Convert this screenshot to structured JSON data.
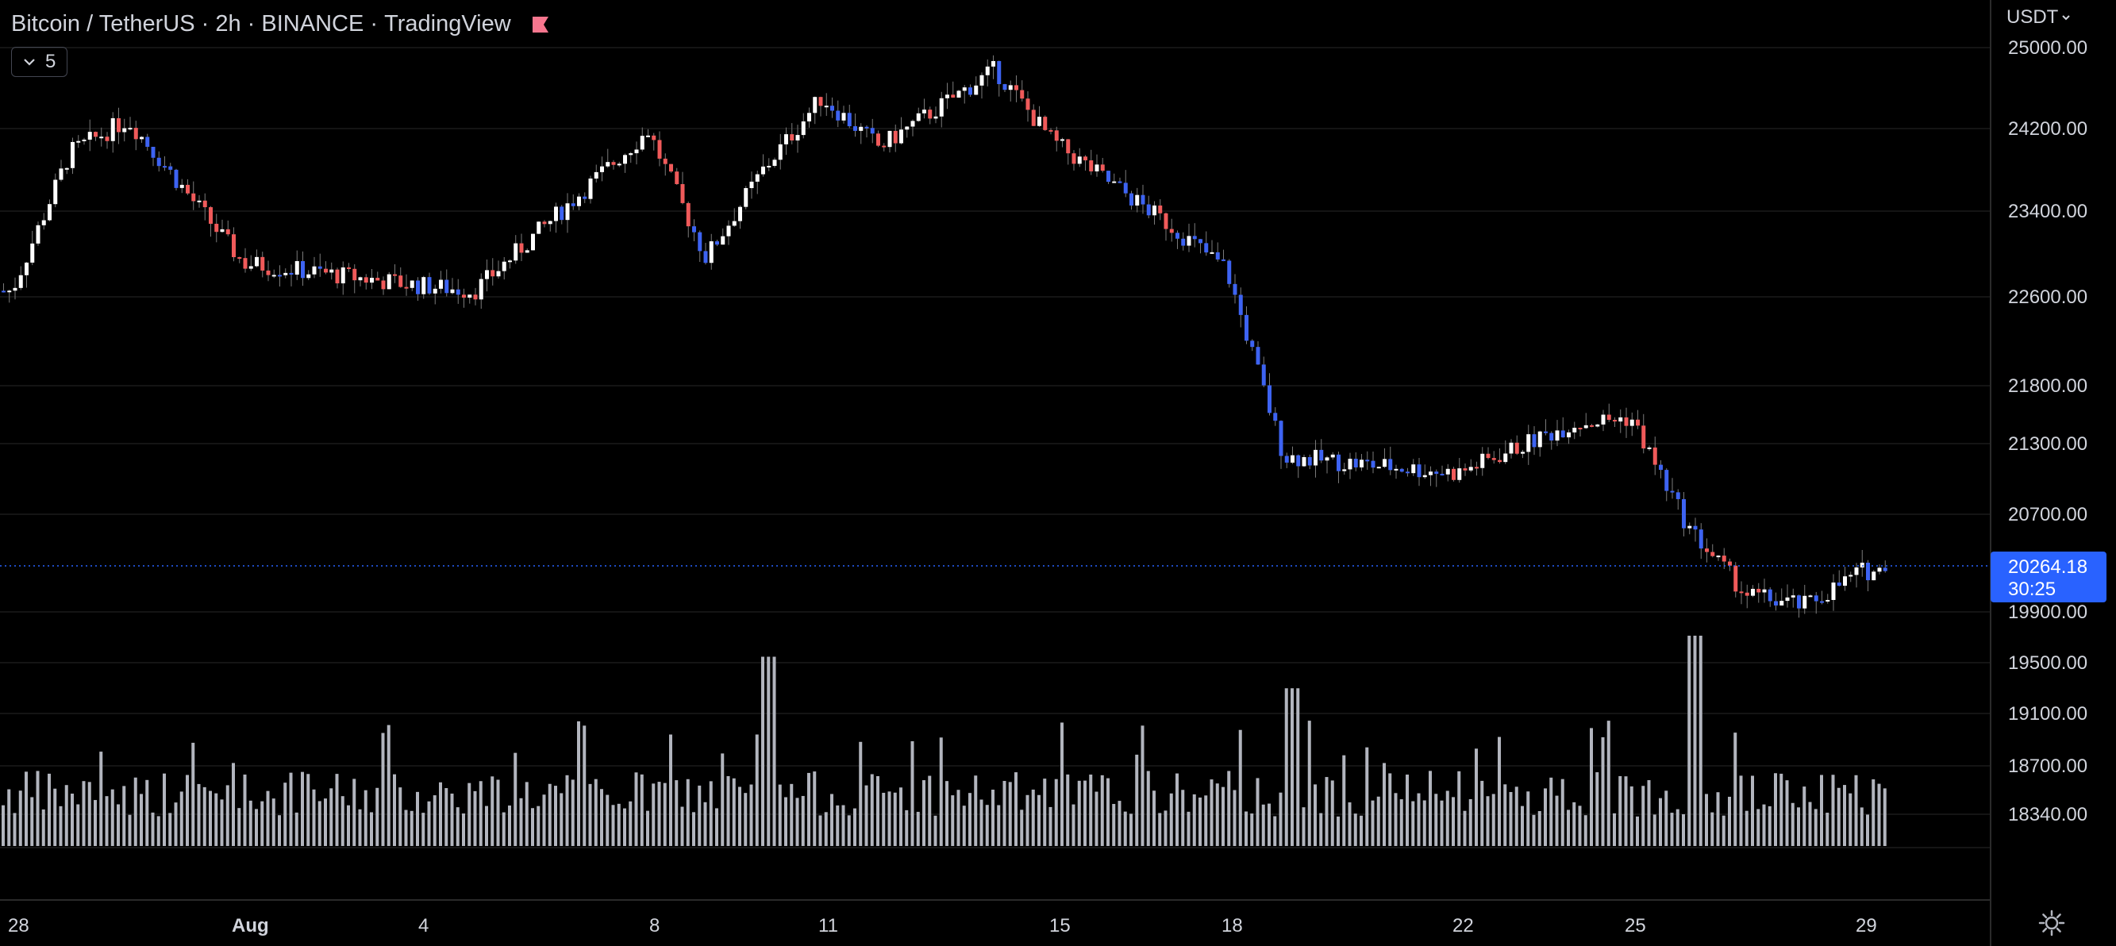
{
  "header": {
    "symbol": "Bitcoin / TetherUS",
    "interval": "2h",
    "exchange": "BINANCE",
    "source": "TradingView",
    "separator": " · "
  },
  "indicators_button": {
    "count": "5"
  },
  "currency_selector": {
    "label": "USDT"
  },
  "price_scale": {
    "labels": [
      "25000.00",
      "24200.00",
      "23400.00",
      "22600.00",
      "21800.00",
      "21300.00",
      "20700.00",
      "19900.00",
      "19500.00",
      "19100.00",
      "18700.00",
      "18340.00"
    ]
  },
  "last_price": {
    "value": "20264.18",
    "countdown": "30:25"
  },
  "time_axis": {
    "labels": [
      "28",
      "Aug",
      "4",
      "8",
      "11",
      "15",
      "18",
      "22",
      "25",
      "29"
    ]
  },
  "colors": {
    "background": "#000000",
    "up_candle": "#ffffff",
    "down_candle_warm": "#f05a5a",
    "down_candle_cool": "#3d63f2",
    "volume": "#b2b5be",
    "last_price": "#2962ff",
    "grid": "#1a1a1a",
    "text": "#d1d4dc",
    "flag": "#f7768e"
  },
  "icons": {
    "flag": "flag-icon",
    "chevron": "chevron-down-icon",
    "settings": "settings-icon"
  },
  "chart_data": {
    "type": "candlestick",
    "symbol": "BTCUSDT",
    "interval": "2h",
    "price_ylim": [
      18100,
      25300
    ],
    "grid": true,
    "last_price": 20264.18,
    "key_points": [
      {
        "x": "Jul 28",
        "price": 22800
      },
      {
        "x": "Jul 29",
        "price": 24050
      },
      {
        "x": "Jul 30",
        "price": 24350
      },
      {
        "x": "Aug 1",
        "price": 23050
      },
      {
        "x": "Aug 4",
        "price": 22850
      },
      {
        "x": "Aug 5",
        "price": 22800
      },
      {
        "x": "Aug 8",
        "price": 24250
      },
      {
        "x": "Aug 9",
        "price": 23100
      },
      {
        "x": "Aug 10",
        "price": 23900
      },
      {
        "x": "Aug 11",
        "price": 24550
      },
      {
        "x": "Aug 12",
        "price": 24100
      },
      {
        "x": "Aug 14",
        "price": 24800
      },
      {
        "x": "Aug 15",
        "price": 24150
      },
      {
        "x": "Aug 17",
        "price": 23400
      },
      {
        "x": "Aug 18",
        "price": 23000
      },
      {
        "x": "Aug 19",
        "price": 21300
      },
      {
        "x": "Aug 20",
        "price": 21250
      },
      {
        "x": "Aug 22",
        "price": 21150
      },
      {
        "x": "Aug 24",
        "price": 21600
      },
      {
        "x": "Aug 25",
        "price": 21650
      },
      {
        "x": "Aug 26",
        "price": 20650
      },
      {
        "x": "Aug 27",
        "price": 20050
      },
      {
        "x": "Aug 28",
        "price": 19950
      },
      {
        "x": "Aug 29",
        "price": 20264.18
      }
    ],
    "volume_spikes": [
      {
        "x": "Aug 10",
        "relative": 0.9
      },
      {
        "x": "Aug 19",
        "relative": 0.75
      },
      {
        "x": "Aug 26",
        "relative": 1.0
      }
    ]
  }
}
